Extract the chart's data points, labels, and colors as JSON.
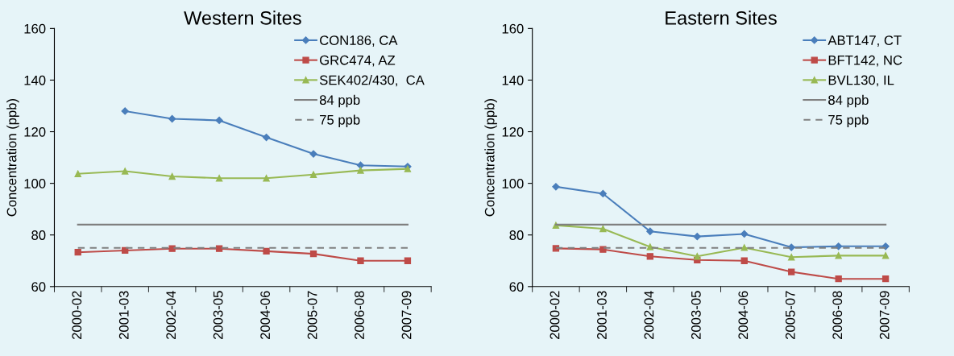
{
  "chart_data": [
    {
      "type": "line",
      "title": "Western Sites",
      "ylabel": "Concentration (ppb)",
      "categories": [
        "2000-02",
        "2001-03",
        "2002-04",
        "2003-05",
        "2004-06",
        "2005-07",
        "2006-08",
        "2007-09"
      ],
      "ylim": [
        60,
        160
      ],
      "yticks": [
        60,
        80,
        100,
        120,
        140,
        160
      ],
      "grid": false,
      "legend": "top right",
      "series": [
        {
          "name": "CON186, CA",
          "color": "#4a7ebb",
          "marker": "diamond",
          "values": [
            null,
            128,
            125,
            124.4,
            117.8,
            111.4,
            107,
            106.5
          ]
        },
        {
          "name": "GRC474, AZ",
          "color": "#be4b48",
          "marker": "square",
          "values": [
            73.3,
            74,
            74.7,
            74.7,
            73.7,
            72.7,
            70,
            70
          ]
        },
        {
          "name": "SEK402/430,  CA",
          "color": "#98b954",
          "marker": "triangle",
          "values": [
            103.7,
            104.7,
            102.7,
            102,
            102,
            103.4,
            105,
            105.6
          ]
        },
        {
          "name": "84 ppb",
          "color": "#808080",
          "marker": "none",
          "line_style": "solid",
          "values": [
            84,
            84,
            84,
            84,
            84,
            84,
            84,
            84
          ]
        },
        {
          "name": "75 ppb",
          "color": "#808080",
          "marker": "none",
          "line_style": "dashed",
          "values": [
            75,
            75,
            75,
            75,
            75,
            75,
            75,
            75
          ]
        }
      ]
    },
    {
      "type": "line",
      "title": "Eastern Sites",
      "ylabel": "Concentration (ppb)",
      "categories": [
        "2000-02",
        "2001-03",
        "2002-04",
        "2003-05",
        "2004-06",
        "2005-07",
        "2006-08",
        "2007-09"
      ],
      "ylim": [
        60,
        160
      ],
      "yticks": [
        60,
        80,
        100,
        120,
        140,
        160
      ],
      "grid": false,
      "legend": "top right",
      "series": [
        {
          "name": "ABT147, CT",
          "color": "#4a7ebb",
          "marker": "diamond",
          "values": [
            98.7,
            96,
            81.4,
            79.4,
            80.4,
            75.2,
            75.6,
            75.6
          ]
        },
        {
          "name": "BFT142, NC",
          "color": "#be4b48",
          "marker": "square",
          "values": [
            74.8,
            74.4,
            71.7,
            70.3,
            70,
            65.7,
            63,
            63
          ]
        },
        {
          "name": "BVL130, IL",
          "color": "#98b954",
          "marker": "triangle",
          "values": [
            83.7,
            82.4,
            75.4,
            71.7,
            75.1,
            71.4,
            72,
            72
          ]
        },
        {
          "name": "84 ppb",
          "color": "#808080",
          "marker": "none",
          "line_style": "solid",
          "values": [
            84,
            84,
            84,
            84,
            84,
            84,
            84,
            84
          ]
        },
        {
          "name": "75 ppb",
          "color": "#808080",
          "marker": "none",
          "line_style": "dashed",
          "values": [
            75,
            75,
            75,
            75,
            75,
            75,
            75,
            75
          ]
        }
      ]
    }
  ]
}
